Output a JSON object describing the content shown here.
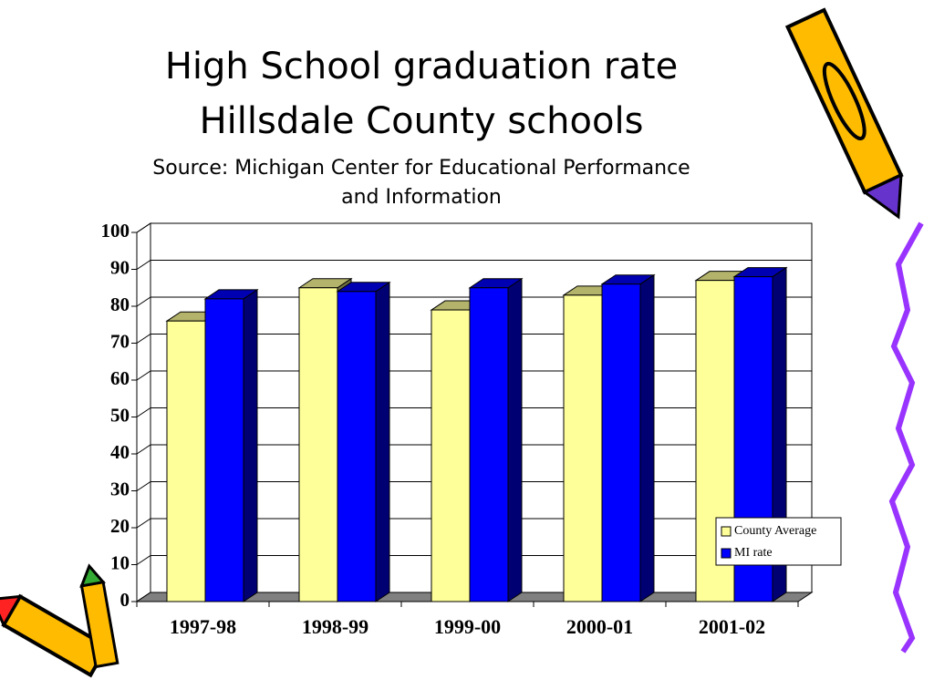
{
  "chart_data": {
    "type": "bar3d",
    "title": "High School graduation rate",
    "subtitle": "Hillsdale County schools",
    "source": [
      "Source: Michigan Center for Educational Performance",
      "and Information"
    ],
    "categories": [
      "1997-98",
      "1998-99",
      "1999-00",
      "2000-01",
      "2001-02"
    ],
    "series": [
      {
        "name": "County Average",
        "color": "#ffff99",
        "values": [
          76,
          85,
          79,
          83,
          87
        ]
      },
      {
        "name": "MI rate",
        "color": "#0000ff",
        "values": [
          82,
          84,
          85,
          86,
          88
        ]
      }
    ],
    "ylim": [
      0,
      100
    ],
    "yticks": [
      0,
      10,
      20,
      30,
      40,
      50,
      60,
      70,
      80,
      90,
      100
    ],
    "grid": true,
    "legend": "lower right"
  }
}
